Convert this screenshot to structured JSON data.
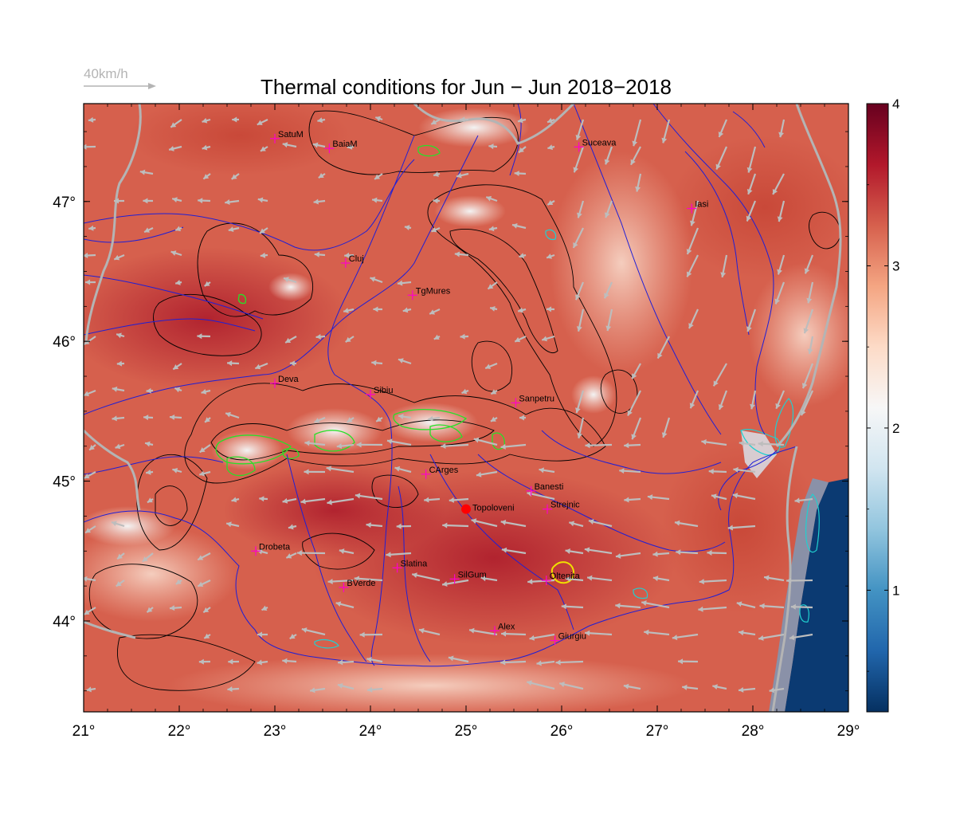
{
  "title": "Thermal conditions for Jun − Jun  2018−2018",
  "wind_legend": {
    "label": "40km/h"
  },
  "map": {
    "lon_range": [
      21,
      29
    ],
    "lat_range": [
      43.35,
      47.7
    ],
    "lon_ticks": [
      {
        "value": 21,
        "label": "21°"
      },
      {
        "value": 22,
        "label": "22°"
      },
      {
        "value": 23,
        "label": "23°"
      },
      {
        "value": 24,
        "label": "24°"
      },
      {
        "value": 25,
        "label": "25°"
      },
      {
        "value": 26,
        "label": "26°"
      },
      {
        "value": 27,
        "label": "27°"
      },
      {
        "value": 28,
        "label": "28°"
      },
      {
        "value": 29,
        "label": "29°"
      }
    ],
    "lat_ticks": [
      {
        "value": 44,
        "label": "44°"
      },
      {
        "value": 45,
        "label": "45°"
      },
      {
        "value": 46,
        "label": "46°"
      },
      {
        "value": 47,
        "label": "47°"
      }
    ],
    "cities": [
      {
        "name": "SatuM",
        "lon": 23.0,
        "lat": 47.45
      },
      {
        "name": "BaiaM",
        "lon": 23.57,
        "lat": 47.38
      },
      {
        "name": "Suceava",
        "lon": 26.18,
        "lat": 47.39
      },
      {
        "name": "Iasi",
        "lon": 27.36,
        "lat": 46.95
      },
      {
        "name": "Cluj",
        "lon": 23.74,
        "lat": 46.56
      },
      {
        "name": "TgMures",
        "lon": 24.44,
        "lat": 46.33
      },
      {
        "name": "Deva",
        "lon": 23.0,
        "lat": 45.7
      },
      {
        "name": "Sibiu",
        "lon": 24.0,
        "lat": 45.62
      },
      {
        "name": "Sanpetru",
        "lon": 25.52,
        "lat": 45.56
      },
      {
        "name": "CArges",
        "lon": 24.58,
        "lat": 45.05
      },
      {
        "name": "Banesti",
        "lon": 25.68,
        "lat": 44.93
      },
      {
        "name": "Strejnic",
        "lon": 25.85,
        "lat": 44.8
      },
      {
        "name": "Drobeta",
        "lon": 22.8,
        "lat": 44.5
      },
      {
        "name": "Slatina",
        "lon": 24.28,
        "lat": 44.38
      },
      {
        "name": "SilGum",
        "lon": 24.88,
        "lat": 44.3
      },
      {
        "name": "Oltenita",
        "lon": 25.84,
        "lat": 44.29
      },
      {
        "name": "BVerde",
        "lon": 23.72,
        "lat": 44.24
      },
      {
        "name": "Alex",
        "lon": 25.3,
        "lat": 43.93
      },
      {
        "name": "Giurgiu",
        "lon": 25.93,
        "lat": 43.86
      }
    ],
    "highlight": {
      "name": "Topoloveni",
      "lon": 25.0,
      "lat": 44.8
    }
  },
  "colorbar": {
    "min": 0.25,
    "max": 4.0,
    "ticks": [
      {
        "value": 1,
        "label": "1"
      },
      {
        "value": 2,
        "label": "2"
      },
      {
        "value": 3,
        "label": "3"
      },
      {
        "value": 4,
        "label": "4"
      }
    ],
    "colors": [
      "#053061",
      "#2166ac",
      "#4393c3",
      "#92c5de",
      "#d1e5f0",
      "#f7f7f7",
      "#fddbc7",
      "#f4a582",
      "#d6604d",
      "#b2182b",
      "#67001f"
    ]
  },
  "colors": {
    "rivers": "#1f1fd6",
    "borders": "#b4b4b4",
    "contours": "#000000",
    "mountain_contours": "#28e028",
    "lakes": "#20d0d0",
    "city_markers": "#ff00cc",
    "highlight_marker": "#ff0000",
    "arrows": "#bdbdbd"
  }
}
